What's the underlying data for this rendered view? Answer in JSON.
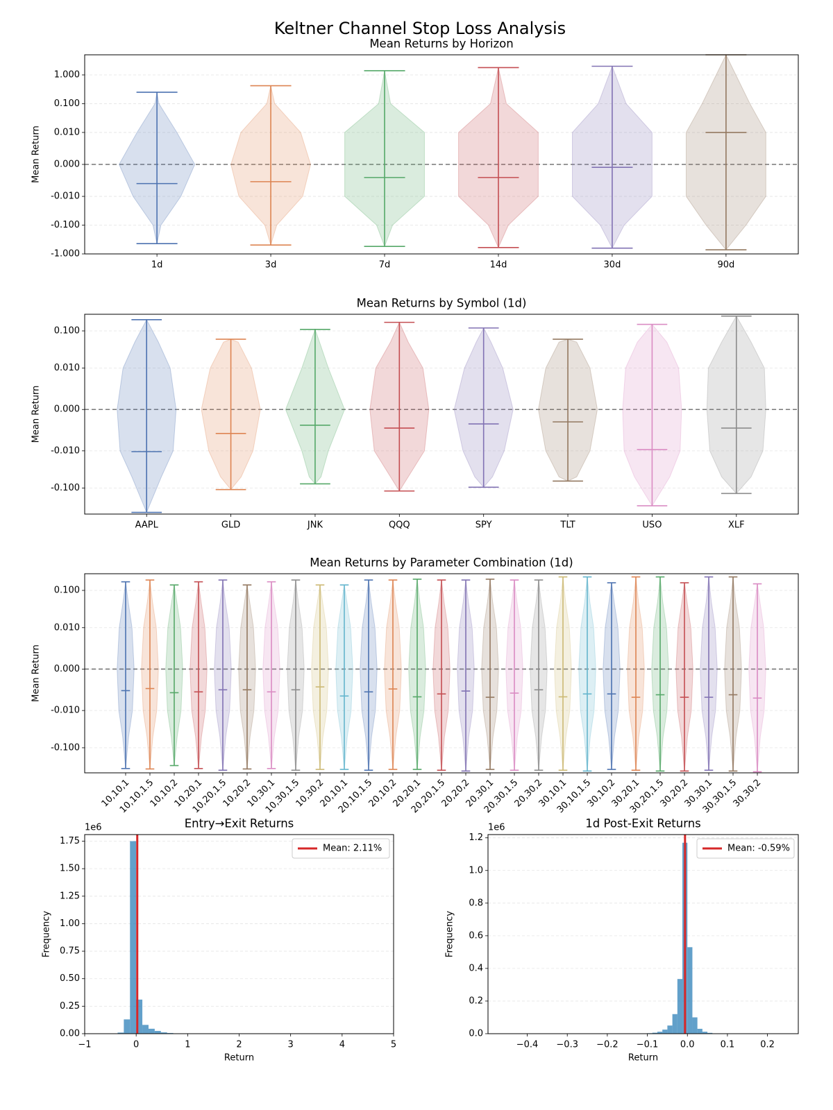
{
  "title": "Keltner Channel Stop Loss Analysis",
  "chart_data": [
    {
      "type": "violin",
      "title": "Mean Returns by Horizon",
      "ylabel": "Mean Return",
      "categories": [
        "1d",
        "3d",
        "7d",
        "14d",
        "30d",
        "90d"
      ],
      "mins": [
        -0.44,
        -0.49,
        -0.55,
        -0.6,
        -0.63,
        -0.72
      ],
      "maxs": [
        0.25,
        0.42,
        1.4,
        1.8,
        2.0,
        5
      ],
      "means": [
        -0.006,
        -0.0054,
        -0.0041,
        -0.0041,
        -0.0009,
        0.01
      ],
      "density_levels": [
        -0.1,
        -0.01,
        0,
        0.01,
        0.1
      ],
      "densities": [
        [
          0.1,
          0.6,
          0.95,
          0.5,
          0.05
        ],
        [
          0.15,
          0.8,
          1,
          0.75,
          0.1
        ],
        [
          0.2,
          1,
          1,
          1,
          0.15
        ],
        [
          0.25,
          1,
          1,
          1,
          0.2
        ],
        [
          0.3,
          1,
          1,
          1,
          0.35
        ],
        [
          0.5,
          1,
          1,
          1,
          0.6
        ]
      ],
      "colors": [
        "#4c72b0",
        "#dd8452",
        "#55a868",
        "#c44e52",
        "#8172b3",
        "#937860"
      ],
      "yscale": "symlog",
      "linthresh": 0.01,
      "ylim": [
        -1,
        5
      ],
      "yticks": [
        {
          "value": -1,
          "label": "-1.000"
        },
        {
          "value": -0.1,
          "label": "-0.100"
        },
        {
          "value": -0.01,
          "label": "-0.010"
        },
        {
          "value": 0,
          "label": "0.000"
        },
        {
          "value": 0.01,
          "label": "0.010"
        },
        {
          "value": 0.1,
          "label": "0.100"
        },
        {
          "value": 1,
          "label": "1.000"
        }
      ],
      "reference_line": 0,
      "grid": true
    },
    {
      "type": "violin",
      "title": "Mean Returns by Symbol (1d)",
      "ylabel": "Mean Return",
      "categories": [
        "AAPL",
        "GLD",
        "JNK",
        "QQQ",
        "SPY",
        "TLT",
        "USO",
        "XLF"
      ],
      "mins": [
        -0.45,
        -0.11,
        -0.077,
        -0.12,
        -0.095,
        -0.065,
        -0.3,
        -0.14
      ],
      "maxs": [
        0.2,
        0.06,
        0.11,
        0.17,
        0.12,
        0.06,
        0.15,
        0.25
      ],
      "means": [
        -0.0105,
        -0.0058,
        -0.0038,
        -0.0045,
        -0.0035,
        -0.003,
        -0.0097,
        -0.0045
      ],
      "density_levels": [
        -0.05,
        -0.01,
        0,
        0.01,
        0.05
      ],
      "densities": [
        [
          0.5,
          0.9,
          1,
          0.8,
          0.4
        ],
        [
          0.35,
          0.75,
          1,
          0.7,
          0.25
        ],
        [
          0.2,
          0.45,
          1,
          0.45,
          0.15
        ],
        [
          0.3,
          0.85,
          1,
          0.8,
          0.3
        ],
        [
          0.3,
          0.7,
          1,
          0.65,
          0.25
        ],
        [
          0.3,
          0.75,
          1,
          0.75,
          0.3
        ],
        [
          0.6,
          0.95,
          1,
          0.9,
          0.5
        ],
        [
          0.5,
          0.9,
          1,
          0.95,
          0.5
        ]
      ],
      "colors": [
        "#4c72b0",
        "#dd8452",
        "#55a868",
        "#c44e52",
        "#8172b3",
        "#937860",
        "#da8bc3",
        "#8c8c8c"
      ],
      "yscale": "symlog",
      "linthresh": 0.01,
      "ylim": [
        -0.5,
        0.28
      ],
      "yticks": [
        {
          "value": -0.1,
          "label": "-0.100"
        },
        {
          "value": -0.01,
          "label": "-0.010"
        },
        {
          "value": 0,
          "label": "0.000"
        },
        {
          "value": 0.01,
          "label": "0.010"
        },
        {
          "value": 0.1,
          "label": "0.100"
        }
      ],
      "reference_line": 0,
      "grid": true
    },
    {
      "type": "violin",
      "title": "Mean Returns by Parameter Combination (1d)",
      "ylabel": "Mean Return",
      "categories": [
        "10,10,1",
        "10,10,1.5",
        "10,10,2",
        "10,20,1",
        "10,20,1.5",
        "10,20,2",
        "10,30,1",
        "10,30,1.5",
        "10,30,2",
        "20,10,1",
        "20,10,1.5",
        "20,10,2",
        "20,20,1",
        "20,20,1.5",
        "20,20,2",
        "20,30,1",
        "20,30,1.5",
        "20,30,2",
        "30,10,1",
        "30,10,1.5",
        "30,10,2",
        "30,20,1",
        "30,20,1.5",
        "30,20,2",
        "30,30,1",
        "30,30,1.5",
        "30,30,2"
      ],
      "mins": [
        -0.36,
        -0.37,
        -0.3,
        -0.36,
        -0.4,
        -0.37,
        -0.36,
        -0.4,
        -0.38,
        -0.38,
        -0.4,
        -0.38,
        -0.38,
        -0.4,
        -0.42,
        -0.38,
        -0.4,
        -0.4,
        -0.4,
        -0.42,
        -0.38,
        -0.4,
        -0.42,
        -0.42,
        -0.4,
        -0.42,
        -0.44
      ],
      "maxs": [
        0.17,
        0.19,
        0.14,
        0.17,
        0.19,
        0.14,
        0.17,
        0.19,
        0.14,
        0.14,
        0.19,
        0.19,
        0.2,
        0.19,
        0.19,
        0.2,
        0.19,
        0.19,
        0.23,
        0.23,
        0.16,
        0.23,
        0.23,
        0.16,
        0.23,
        0.23,
        0.15
      ],
      "means": [
        -0.0052,
        -0.0047,
        -0.0057,
        -0.0055,
        -0.005,
        -0.005,
        -0.0055,
        -0.005,
        -0.0043,
        -0.0065,
        -0.0055,
        -0.0048,
        -0.0067,
        -0.006,
        -0.0053,
        -0.0068,
        -0.0058,
        -0.005,
        -0.0067,
        -0.006,
        -0.006,
        -0.0068,
        -0.0062,
        -0.0068,
        -0.0068,
        -0.0062,
        -0.007
      ],
      "density_levels": [
        -0.05,
        -0.01,
        0,
        0.01,
        0.05
      ],
      "densities": [
        [
          0.35,
          0.8,
          1,
          0.75,
          0.3
        ],
        [
          0.35,
          0.8,
          1,
          0.75,
          0.3
        ],
        [
          0.35,
          0.8,
          1,
          0.75,
          0.3
        ],
        [
          0.35,
          0.8,
          1,
          0.75,
          0.3
        ],
        [
          0.35,
          0.8,
          1,
          0.75,
          0.3
        ],
        [
          0.35,
          0.8,
          1,
          0.75,
          0.3
        ],
        [
          0.35,
          0.8,
          1,
          0.75,
          0.3
        ],
        [
          0.35,
          0.8,
          1,
          0.75,
          0.3
        ],
        [
          0.35,
          0.8,
          1,
          0.75,
          0.3
        ],
        [
          0.35,
          0.8,
          1,
          0.75,
          0.3
        ],
        [
          0.35,
          0.8,
          1,
          0.75,
          0.3
        ],
        [
          0.35,
          0.8,
          1,
          0.75,
          0.3
        ],
        [
          0.35,
          0.8,
          1,
          0.75,
          0.3
        ],
        [
          0.35,
          0.8,
          1,
          0.75,
          0.3
        ],
        [
          0.35,
          0.8,
          1,
          0.75,
          0.3
        ],
        [
          0.35,
          0.8,
          1,
          0.75,
          0.3
        ],
        [
          0.35,
          0.8,
          1,
          0.75,
          0.3
        ],
        [
          0.35,
          0.8,
          1,
          0.75,
          0.3
        ],
        [
          0.35,
          0.8,
          1,
          0.75,
          0.3
        ],
        [
          0.35,
          0.8,
          1,
          0.75,
          0.3
        ],
        [
          0.35,
          0.8,
          1,
          0.75,
          0.3
        ],
        [
          0.35,
          0.8,
          1,
          0.75,
          0.3
        ],
        [
          0.35,
          0.8,
          1,
          0.75,
          0.3
        ],
        [
          0.35,
          0.8,
          1,
          0.75,
          0.3
        ],
        [
          0.35,
          0.8,
          1,
          0.75,
          0.3
        ],
        [
          0.35,
          0.8,
          1,
          0.75,
          0.3
        ],
        [
          0.35,
          0.8,
          1,
          0.75,
          0.3
        ]
      ],
      "colors": [
        "#4c72b0",
        "#dd8452",
        "#55a868",
        "#c44e52",
        "#8172b3",
        "#937860",
        "#da8bc3",
        "#8c8c8c",
        "#ccb974",
        "#64b5cd"
      ],
      "yscale": "symlog",
      "linthresh": 0.01,
      "ylim": [
        -0.47,
        0.28
      ],
      "yticks": [
        {
          "value": -0.1,
          "label": "-0.100"
        },
        {
          "value": -0.01,
          "label": "-0.010"
        },
        {
          "value": 0,
          "label": "0.000"
        },
        {
          "value": 0.01,
          "label": "0.010"
        },
        {
          "value": 0.1,
          "label": "0.100"
        }
      ],
      "reference_line": 0,
      "grid": true,
      "rotate_labels": true
    },
    {
      "type": "histogram",
      "title": "Entry→Exit Returns",
      "xlabel": "Return",
      "ylabel": "Frequency",
      "bins": [
        -0.36,
        -0.24,
        -0.12,
        0,
        0.12,
        0.24,
        0.36,
        0.48,
        0.6,
        0.72,
        0.84,
        0.96
      ],
      "counts": [
        0.01,
        0.13,
        1.75,
        0.31,
        0.08,
        0.045,
        0.025,
        0.012,
        0.006,
        0.003,
        0.001
      ],
      "color": "#1f77b4",
      "mean": 0.0211,
      "mean_label": "Mean: 2.11%",
      "mean_color": "#d62728",
      "xlim": [
        -1,
        5
      ],
      "xticks": [
        {
          "value": -1,
          "label": "−1"
        },
        0,
        1,
        2,
        3,
        4,
        5
      ],
      "ylim": [
        0,
        1.81
      ],
      "yticks": [
        {
          "value": 0,
          "label": "0.00"
        },
        0.25,
        {
          "value": 0.5,
          "label": "0.50"
        },
        0.75,
        {
          "value": 1,
          "label": "1.00"
        },
        1.25,
        {
          "value": 1.5,
          "label": "1.50"
        },
        1.75
      ],
      "y_offset_label": "1e6",
      "legend": "upper right",
      "grid": true
    },
    {
      "type": "histogram",
      "title": "1d Post-Exit Returns",
      "xlabel": "Return",
      "ylabel": "Frequency",
      "bins": [
        -0.1,
        -0.0875,
        -0.075,
        -0.0625,
        -0.05,
        -0.0375,
        -0.025,
        -0.0125,
        0,
        0.0125,
        0.025,
        0.0375,
        0.05,
        0.0625
      ],
      "counts": [
        0.003,
        0.006,
        0.012,
        0.025,
        0.05,
        0.12,
        0.335,
        1.17,
        0.53,
        0.1,
        0.03,
        0.012,
        0.005
      ],
      "color": "#1f77b4",
      "mean": -0.0059,
      "mean_label": "Mean: -0.59%",
      "mean_color": "#d62728",
      "xlim": [
        -0.498,
        0.277
      ],
      "xticks": [
        {
          "value": -0.4,
          "label": "−0.4"
        },
        {
          "value": -0.3,
          "label": "−0.3"
        },
        {
          "value": -0.2,
          "label": "−0.2"
        },
        {
          "value": -0.1,
          "label": "−0.1"
        },
        {
          "value": 0,
          "label": "0.0"
        },
        0.1,
        0.2
      ],
      "ylim": [
        0,
        1.22
      ],
      "yticks": [
        {
          "value": 0,
          "label": "0.0"
        },
        0.2,
        0.4,
        0.6,
        0.8,
        {
          "value": 1,
          "label": "1.0"
        },
        1.2
      ],
      "y_offset_label": "1e6",
      "legend": "upper right",
      "grid": true
    }
  ]
}
